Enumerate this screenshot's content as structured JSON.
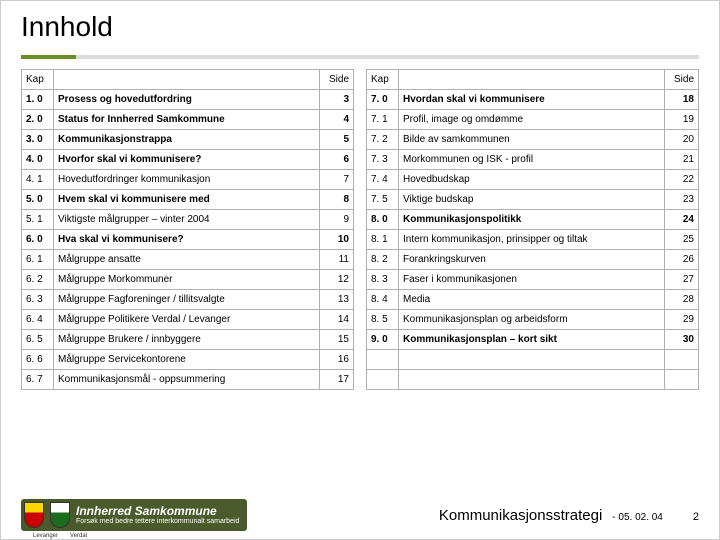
{
  "title": "Innhold",
  "header": {
    "kap": "Kap",
    "side": "Side"
  },
  "left_rows": [
    {
      "kap": "1. 0",
      "txt": "Prosess og hovedutfordring",
      "side": "3",
      "bold": true
    },
    {
      "kap": "2. 0",
      "txt": "Status for Innherred Samkommune",
      "side": "4",
      "bold": true
    },
    {
      "kap": "3. 0",
      "txt": "Kommunikasjonstrappa",
      "side": "5",
      "bold": true
    },
    {
      "kap": "4. 0",
      "txt": "Hvorfor skal vi kommunisere?",
      "side": "6",
      "bold": true
    },
    {
      "kap": "4. 1",
      "txt": "Hovedutfordringer kommunikasjon",
      "side": "7",
      "bold": false
    },
    {
      "kap": "5. 0",
      "txt": "Hvem skal vi kommunisere med",
      "side": "8",
      "bold": true
    },
    {
      "kap": "5. 1",
      "txt": "Viktigste målgrupper – vinter 2004",
      "side": "9",
      "bold": false
    },
    {
      "kap": "6. 0",
      "txt": "Hva skal vi kommunisere?",
      "side": "10",
      "bold": true
    },
    {
      "kap": "6. 1",
      "txt": "Målgruppe ansatte",
      "side": "11",
      "bold": false
    },
    {
      "kap": "6. 2",
      "txt": "Målgruppe Morkommuner",
      "side": "12",
      "bold": false
    },
    {
      "kap": "6. 3",
      "txt": "Målgruppe Fagforeninger /  tillitsvalgte",
      "side": "13",
      "bold": false
    },
    {
      "kap": "6. 4",
      "txt": "Målgruppe Politikere Verdal /  Levanger",
      "side": "14",
      "bold": false
    },
    {
      "kap": "6. 5",
      "txt": "Målgruppe Brukere / innbyggere",
      "side": "15",
      "bold": false
    },
    {
      "kap": "6. 6",
      "txt": "Målgruppe Servicekontorene",
      "side": "16",
      "bold": false
    },
    {
      "kap": "6. 7",
      "txt": "Kommunikasjonsmål - oppsummering",
      "side": "17",
      "bold": false
    }
  ],
  "right_rows": [
    {
      "kap": "7. 0",
      "txt": "Hvordan skal vi kommunisere",
      "side": "18",
      "bold": true
    },
    {
      "kap": "7. 1",
      "txt": "Profil, image og omdømme",
      "side": "19",
      "bold": false
    },
    {
      "kap": "7. 2",
      "txt": "Bilde av samkommunen",
      "side": "20",
      "bold": false
    },
    {
      "kap": "7. 3",
      "txt": "Morkommunen og ISK - profil",
      "side": "21",
      "bold": false
    },
    {
      "kap": "7. 4",
      "txt": "Hovedbudskap",
      "side": "22",
      "bold": false
    },
    {
      "kap": "7. 5",
      "txt": "Viktige budskap",
      "side": "23",
      "bold": false
    },
    {
      "kap": "8. 0",
      "txt": "Kommunikasjonspolitikk",
      "side": "24",
      "bold": true
    },
    {
      "kap": "8. 1",
      "txt": "Intern kommunikasjon, prinsipper og tiltak",
      "side": "25",
      "bold": false
    },
    {
      "kap": "8. 2",
      "txt": "Forankringskurven",
      "side": "26",
      "bold": false
    },
    {
      "kap": "8. 3",
      "txt": "Faser i kommunikasjonen",
      "side": "27",
      "bold": false
    },
    {
      "kap": "8. 4",
      "txt": "Media",
      "side": "28",
      "bold": false
    },
    {
      "kap": "8. 5",
      "txt": "Kommunikasjonsplan og arbeidsform",
      "side": "29",
      "bold": false
    },
    {
      "kap": "9. 0",
      "txt": "Kommunikasjonsplan – kort sikt",
      "side": "30",
      "bold": true
    },
    {
      "kap": "",
      "txt": "",
      "side": "",
      "bold": false
    },
    {
      "kap": "",
      "txt": "",
      "side": "",
      "bold": false
    }
  ],
  "footer": {
    "logo_line1": "Innherred Samkommune",
    "logo_line2": "Forsøk med bedre tettere interkommunalt samarbeid",
    "left_muni": "Levanger",
    "right_muni": "Verdal",
    "title": "Kommunikasjonsstrategi",
    "date": "- 05. 02. 04",
    "page": "2"
  },
  "colors": {
    "accent": "#6b8e23",
    "rule": "#dcdcdc",
    "border": "#b0b0b0",
    "logo_bg": "#4a5a2a"
  }
}
